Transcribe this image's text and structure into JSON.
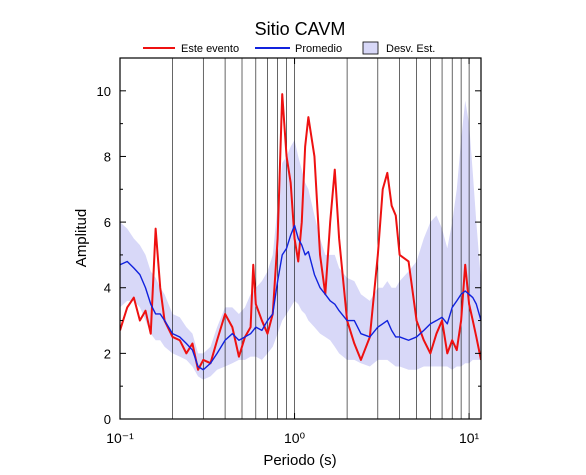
{
  "chart_data": {
    "type": "line",
    "title": "Sitio CAVM",
    "x_label": "Periodo (s)",
    "y_label": "Amplitud",
    "x_scale": "log",
    "xlim": [
      0.1,
      11.7
    ],
    "ylim": [
      0,
      11
    ],
    "xticks": [
      {
        "value": 0.1,
        "label": "10⁻¹"
      },
      {
        "value": 1,
        "label": "10⁰"
      },
      {
        "value": 10,
        "label": "10¹"
      }
    ],
    "yticks": [
      0,
      2,
      4,
      6,
      8,
      10
    ],
    "yminor_ticks": [
      1,
      3,
      5,
      7,
      9
    ],
    "xgrid": [
      0.2,
      0.3,
      0.4,
      0.5,
      0.6,
      0.7,
      0.8,
      0.9,
      1,
      2,
      3,
      4,
      5,
      6,
      7,
      8,
      9,
      10
    ],
    "x": [
      0.1,
      0.11,
      0.12,
      0.13,
      0.14,
      0.15,
      0.16,
      0.17,
      0.18,
      0.2,
      0.22,
      0.24,
      0.26,
      0.28,
      0.3,
      0.33,
      0.36,
      0.4,
      0.44,
      0.48,
      0.52,
      0.56,
      0.58,
      0.6,
      0.65,
      0.7,
      0.75,
      0.8,
      0.85,
      0.9,
      0.95,
      1.0,
      1.05,
      1.1,
      1.15,
      1.2,
      1.3,
      1.4,
      1.5,
      1.6,
      1.7,
      1.8,
      2.0,
      2.2,
      2.4,
      2.7,
      3.0,
      3.2,
      3.4,
      3.6,
      3.8,
      4.0,
      4.5,
      5,
      5.5,
      6,
      6.5,
      7,
      7.5,
      8,
      8.5,
      9,
      9.5,
      10,
      10.5,
      11,
      11.7
    ],
    "band": {
      "name": "Desv. Est.",
      "color": "#d8d8f8",
      "upper": [
        6.0,
        5.8,
        5.5,
        5.3,
        5.0,
        4.5,
        4.3,
        4.0,
        3.8,
        3.2,
        3.1,
        2.8,
        2.6,
        2.0,
        2.0,
        2.2,
        2.8,
        3.4,
        3.4,
        3.2,
        3.4,
        3.8,
        3.9,
        4.0,
        4.2,
        4.5,
        5.0,
        6.5,
        7.8,
        8.0,
        8.3,
        8.5,
        8.0,
        7.6,
        7.2,
        7.0,
        6.2,
        5.5,
        5.0,
        5.0,
        5.0,
        4.6,
        4.3,
        4.2,
        3.8,
        3.6,
        4.0,
        4.0,
        4.2,
        4.0,
        4.0,
        4.2,
        4.5,
        4.8,
        5.5,
        6.0,
        6.2,
        5.8,
        5.2,
        6.0,
        7.0,
        8.5,
        9.7,
        9.0,
        7.5,
        6.0,
        4.2
      ],
      "lower": [
        3.4,
        3.6,
        3.6,
        3.4,
        3.0,
        2.6,
        2.4,
        2.4,
        2.2,
        2.0,
        1.9,
        1.8,
        1.6,
        1.3,
        1.2,
        1.3,
        1.5,
        1.6,
        1.7,
        1.8,
        1.8,
        1.9,
        1.9,
        1.9,
        1.8,
        2.0,
        2.2,
        2.6,
        3.0,
        3.2,
        3.4,
        3.6,
        3.5,
        3.3,
        3.2,
        3.0,
        2.8,
        2.6,
        2.5,
        2.4,
        2.2,
        2.0,
        1.8,
        1.8,
        1.7,
        1.6,
        1.8,
        1.8,
        1.8,
        1.7,
        1.6,
        1.6,
        1.5,
        1.5,
        1.6,
        1.6,
        1.6,
        1.6,
        1.6,
        1.5,
        1.6,
        1.6,
        1.7,
        1.7,
        1.8,
        1.8,
        1.8
      ]
    },
    "series": [
      {
        "name": "Este evento",
        "color": "#ee1111",
        "values": [
          2.7,
          3.4,
          3.7,
          3.0,
          3.3,
          2.6,
          5.8,
          4.0,
          3.0,
          2.5,
          2.4,
          2.0,
          2.3,
          1.5,
          1.8,
          1.7,
          2.4,
          3.2,
          2.8,
          1.9,
          2.5,
          2.8,
          4.7,
          3.5,
          3.0,
          2.6,
          3.2,
          5.5,
          9.9,
          8.0,
          7.2,
          5.5,
          4.8,
          6.0,
          8.3,
          9.2,
          8.0,
          5.0,
          3.8,
          6.0,
          7.6,
          5.5,
          3.0,
          2.3,
          1.8,
          2.5,
          5.0,
          7.0,
          7.5,
          6.5,
          6.2,
          5.0,
          4.8,
          3.0,
          2.4,
          2.0,
          2.6,
          3.0,
          2.0,
          2.4,
          2.1,
          3.0,
          4.7,
          3.5,
          3.0,
          2.5,
          1.8
        ]
      },
      {
        "name": "Promedio",
        "color": "#1122dd",
        "values": [
          4.7,
          4.8,
          4.6,
          4.4,
          4.0,
          3.5,
          3.2,
          3.2,
          3.0,
          2.6,
          2.5,
          2.3,
          2.1,
          1.6,
          1.5,
          1.7,
          2.0,
          2.4,
          2.6,
          2.4,
          2.5,
          2.6,
          2.7,
          2.8,
          2.7,
          3.0,
          3.2,
          4.2,
          5.0,
          5.2,
          5.6,
          5.9,
          5.5,
          5.3,
          5.0,
          5.1,
          4.4,
          4.0,
          3.8,
          3.6,
          3.5,
          3.3,
          3.0,
          3.0,
          2.6,
          2.5,
          2.8,
          2.9,
          3.0,
          2.7,
          2.5,
          2.5,
          2.4,
          2.5,
          2.7,
          2.9,
          3.0,
          3.1,
          2.9,
          3.4,
          3.6,
          3.8,
          3.9,
          3.8,
          3.7,
          3.5,
          3.0
        ]
      }
    ]
  }
}
